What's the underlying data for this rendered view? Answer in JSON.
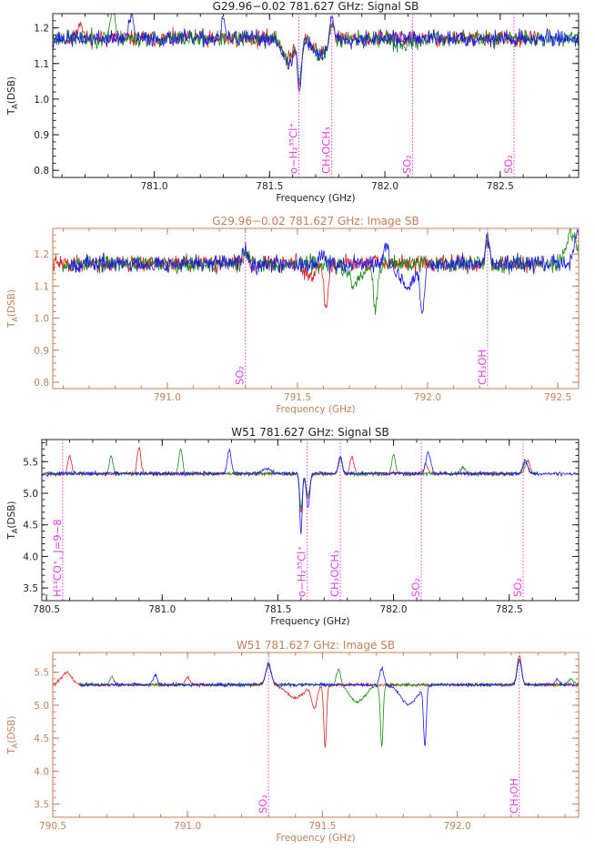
{
  "colors": {
    "signal": "#222222",
    "image": "#c0805a",
    "red": "#e02020",
    "green": "#1a8a1a",
    "blue": "#1a1aee",
    "marker": "#e040e0"
  },
  "chart_data": [
    {
      "type": "line",
      "title": "G29.96−0.02 781.627 GHz: Signal SB",
      "sideband": "signal",
      "xlabel": "Frequency (GHz)",
      "ylabel_main": "T",
      "ylabel_sub": "A",
      "ylabel_tail": "(DSB)",
      "xlim": [
        780.56,
        782.84
      ],
      "ylim": [
        0.78,
        1.24
      ],
      "xticks": [
        "781.0",
        "781.5",
        "782.0",
        "782.5"
      ],
      "yticks": [
        "0.8",
        "0.9",
        "1.0",
        "1.1",
        "1.2"
      ],
      "baseline": 1.17,
      "noise": 0.014,
      "series": [
        {
          "name": "red",
          "color": "red",
          "start": 780.62,
          "end": 782.66,
          "seed": 11,
          "features": [
            [
              780.68,
              0.05,
              0.01
            ],
            [
              781.58,
              -0.06,
              0.02
            ],
            [
              781.63,
              -0.13,
              0.008
            ],
            [
              781.72,
              -0.04,
              0.03
            ],
            [
              781.77,
              0.05,
              0.01
            ]
          ]
        },
        {
          "name": "green",
          "color": "green",
          "start": 780.56,
          "end": 782.84,
          "seed": 23,
          "features": [
            [
              780.82,
              0.09,
              0.01
            ],
            [
              781.58,
              -0.07,
              0.02
            ],
            [
              781.63,
              -0.12,
              0.008
            ],
            [
              781.72,
              -0.05,
              0.03
            ],
            [
              781.77,
              0.05,
              0.01
            ],
            [
              782.08,
              -0.02,
              0.04
            ]
          ]
        },
        {
          "name": "blue",
          "color": "blue",
          "start": 780.56,
          "end": 782.84,
          "seed": 37,
          "features": [
            [
              780.9,
              0.06,
              0.01
            ],
            [
              781.58,
              -0.08,
              0.02
            ],
            [
              781.63,
              -0.15,
              0.008
            ],
            [
              781.72,
              -0.05,
              0.03
            ],
            [
              781.77,
              0.07,
              0.01
            ],
            [
              781.3,
              0.06,
              0.006
            ]
          ]
        }
      ],
      "markers": [
        {
          "x": 781.627,
          "label": "o−H₂³⁵Cl⁺"
        },
        {
          "x": 781.77,
          "label": "CH₃OCH₃"
        },
        {
          "x": 782.12,
          "label": "SO₂"
        },
        {
          "x": 782.56,
          "label": "SO₂"
        }
      ]
    },
    {
      "type": "line",
      "title": "G29.96−0.02 781.627 GHz: Image SB",
      "sideband": "image",
      "xlabel": "Frequency (GHz)",
      "ylabel_main": "T",
      "ylabel_sub": "A",
      "ylabel_tail": "(DSB)",
      "xlim": [
        790.56,
        792.58
      ],
      "ylim": [
        0.78,
        1.28
      ],
      "xticks": [
        "791.0",
        "791.5",
        "792.0",
        "792.5"
      ],
      "yticks": [
        "0.8",
        "0.9",
        "1.0",
        "1.1",
        "1.2"
      ],
      "baseline": 1.17,
      "noise": 0.016,
      "series": [
        {
          "name": "red",
          "color": "red",
          "start": 790.56,
          "end": 792.44,
          "seed": 41,
          "features": [
            [
              791.3,
              0.04,
              0.01
            ],
            [
              791.55,
              -0.04,
              0.02
            ],
            [
              791.61,
              -0.14,
              0.008
            ],
            [
              792.23,
              0.07,
              0.008
            ]
          ]
        },
        {
          "name": "green",
          "color": "green",
          "start": 790.6,
          "end": 792.58,
          "seed": 53,
          "features": [
            [
              791.3,
              0.04,
              0.01
            ],
            [
              791.72,
              -0.06,
              0.03
            ],
            [
              791.8,
              -0.15,
              0.008
            ],
            [
              792.23,
              0.08,
              0.008
            ],
            [
              792.55,
              0.1,
              0.02
            ]
          ]
        },
        {
          "name": "blue",
          "color": "blue",
          "start": 790.62,
          "end": 792.58,
          "seed": 67,
          "features": [
            [
              791.3,
              0.05,
              0.01
            ],
            [
              791.6,
              0.04,
              0.01
            ],
            [
              791.92,
              -0.07,
              0.03
            ],
            [
              791.98,
              -0.15,
              0.008
            ],
            [
              791.84,
              0.06,
              0.008
            ],
            [
              792.23,
              0.08,
              0.008
            ],
            [
              792.58,
              0.1,
              0.015
            ]
          ]
        }
      ],
      "markers": [
        {
          "x": 791.3,
          "label": "SO₂"
        },
        {
          "x": 792.23,
          "label": "CH₃OH"
        }
      ]
    },
    {
      "type": "line",
      "title": "W51 781.627 GHz: Signal SB",
      "sideband": "signal",
      "xlabel": "Frequency (GHz)",
      "ylabel_main": "T",
      "ylabel_sub": "A",
      "ylabel_tail": "(DSB)",
      "xlim": [
        780.48,
        782.8
      ],
      "ylim": [
        3.3,
        5.85
      ],
      "xticks": [
        "780.5",
        "781.0",
        "781.5",
        "782.0",
        "782.5"
      ],
      "yticks": [
        "3.5",
        "4.0",
        "4.5",
        "5.0",
        "5.5"
      ],
      "baseline": 5.31,
      "noise": 0.018,
      "series": [
        {
          "name": "red",
          "color": "red",
          "start": 780.5,
          "end": 782.6,
          "seed": 71,
          "features": [
            [
              780.6,
              0.28,
              0.008
            ],
            [
              780.9,
              0.42,
              0.008
            ],
            [
              781.6,
              -0.6,
              0.006
            ],
            [
              781.63,
              -0.4,
              0.008
            ],
            [
              781.77,
              0.25,
              0.008
            ],
            [
              781.82,
              0.28,
              0.008
            ],
            [
              782.14,
              0.13,
              0.01
            ],
            [
              782.58,
              0.2,
              0.01
            ]
          ]
        },
        {
          "name": "green",
          "color": "green",
          "start": 780.5,
          "end": 782.62,
          "seed": 83,
          "features": [
            [
              780.78,
              0.28,
              0.008
            ],
            [
              781.08,
              0.38,
              0.008
            ],
            [
              781.6,
              -0.55,
              0.006
            ],
            [
              781.63,
              -0.35,
              0.008
            ],
            [
              781.77,
              0.25,
              0.008
            ],
            [
              782.0,
              0.3,
              0.008
            ],
            [
              782.3,
              0.1,
              0.01
            ],
            [
              782.57,
              0.18,
              0.01
            ]
          ]
        },
        {
          "name": "blue",
          "color": "blue",
          "start": 780.48,
          "end": 782.8,
          "seed": 97,
          "features": [
            [
              781.29,
              0.38,
              0.008
            ],
            [
              781.6,
              -0.95,
              0.005
            ],
            [
              781.63,
              -0.55,
              0.007
            ],
            [
              781.77,
              0.28,
              0.008
            ],
            [
              782.15,
              0.35,
              0.01
            ],
            [
              782.57,
              0.22,
              0.01
            ],
            [
              781.45,
              0.08,
              0.02
            ]
          ]
        }
      ],
      "markers": [
        {
          "x": 780.57,
          "label": "H¹³CO⁺, J=9−8"
        },
        {
          "x": 781.627,
          "label": "o−H₂³⁵Cl⁺"
        },
        {
          "x": 781.77,
          "label": "CH₃OCH₃"
        },
        {
          "x": 782.12,
          "label": "SO₂"
        },
        {
          "x": 782.56,
          "label": "SO₂"
        }
      ]
    },
    {
      "type": "line",
      "title": "W51 781.627 GHz: Image SB",
      "sideband": "image",
      "xlabel": "Frequency (GHz)",
      "ylabel_main": "T",
      "ylabel_sub": "A",
      "ylabel_tail": "(DSB)",
      "xlim": [
        790.5,
        792.45
      ],
      "ylim": [
        3.3,
        5.8
      ],
      "xticks": [
        "790.5",
        "791.0",
        "791.5",
        "792.0"
      ],
      "yticks": [
        "3.5",
        "4.0",
        "4.5",
        "5.0",
        "5.5"
      ],
      "baseline": 5.31,
      "noise": 0.015,
      "series": [
        {
          "name": "red",
          "color": "red",
          "start": 790.5,
          "end": 792.45,
          "seed": 101,
          "features": [
            [
              790.55,
              0.18,
              0.02
            ],
            [
              791.3,
              0.3,
              0.01
            ],
            [
              791.4,
              -0.2,
              0.03
            ],
            [
              791.47,
              -0.35,
              0.01
            ],
            [
              791.51,
              -0.95,
              0.005
            ],
            [
              792.23,
              0.45,
              0.008
            ],
            [
              791.0,
              0.12,
              0.008
            ]
          ]
        },
        {
          "name": "green",
          "color": "green",
          "start": 790.6,
          "end": 792.45,
          "seed": 113,
          "features": [
            [
              790.72,
              0.12,
              0.008
            ],
            [
              791.3,
              0.3,
              0.01
            ],
            [
              791.56,
              0.25,
              0.008
            ],
            [
              791.63,
              -0.25,
              0.03
            ],
            [
              791.72,
              -0.95,
              0.005
            ],
            [
              792.23,
              0.4,
              0.008
            ],
            [
              792.42,
              0.08,
              0.01
            ]
          ]
        },
        {
          "name": "blue",
          "color": "blue",
          "start": 790.6,
          "end": 792.45,
          "seed": 127,
          "features": [
            [
              790.88,
              0.15,
              0.008
            ],
            [
              791.3,
              0.32,
              0.01
            ],
            [
              791.72,
              0.25,
              0.008
            ],
            [
              791.82,
              -0.3,
              0.03
            ],
            [
              791.88,
              -0.9,
              0.005
            ],
            [
              792.23,
              0.38,
              0.008
            ],
            [
              792.37,
              0.08,
              0.008
            ]
          ]
        }
      ],
      "markers": [
        {
          "x": 791.3,
          "label": "SO₂"
        },
        {
          "x": 792.23,
          "label": "CH₃OH"
        }
      ]
    }
  ]
}
